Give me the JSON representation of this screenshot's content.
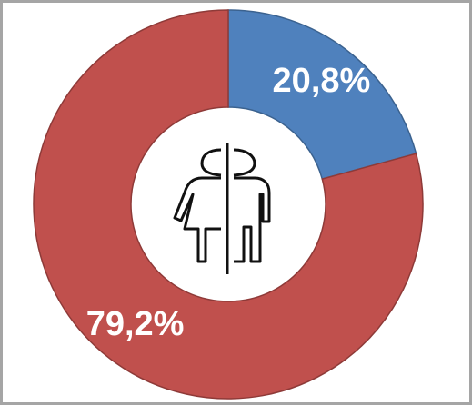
{
  "chart_data": {
    "type": "donut",
    "categories": [
      null,
      null
    ],
    "values": [
      20.8,
      79.2
    ],
    "value_labels": [
      "20,8%",
      "79,2%"
    ],
    "colors": [
      "#4f81bd",
      "#c0504d"
    ]
  }
}
